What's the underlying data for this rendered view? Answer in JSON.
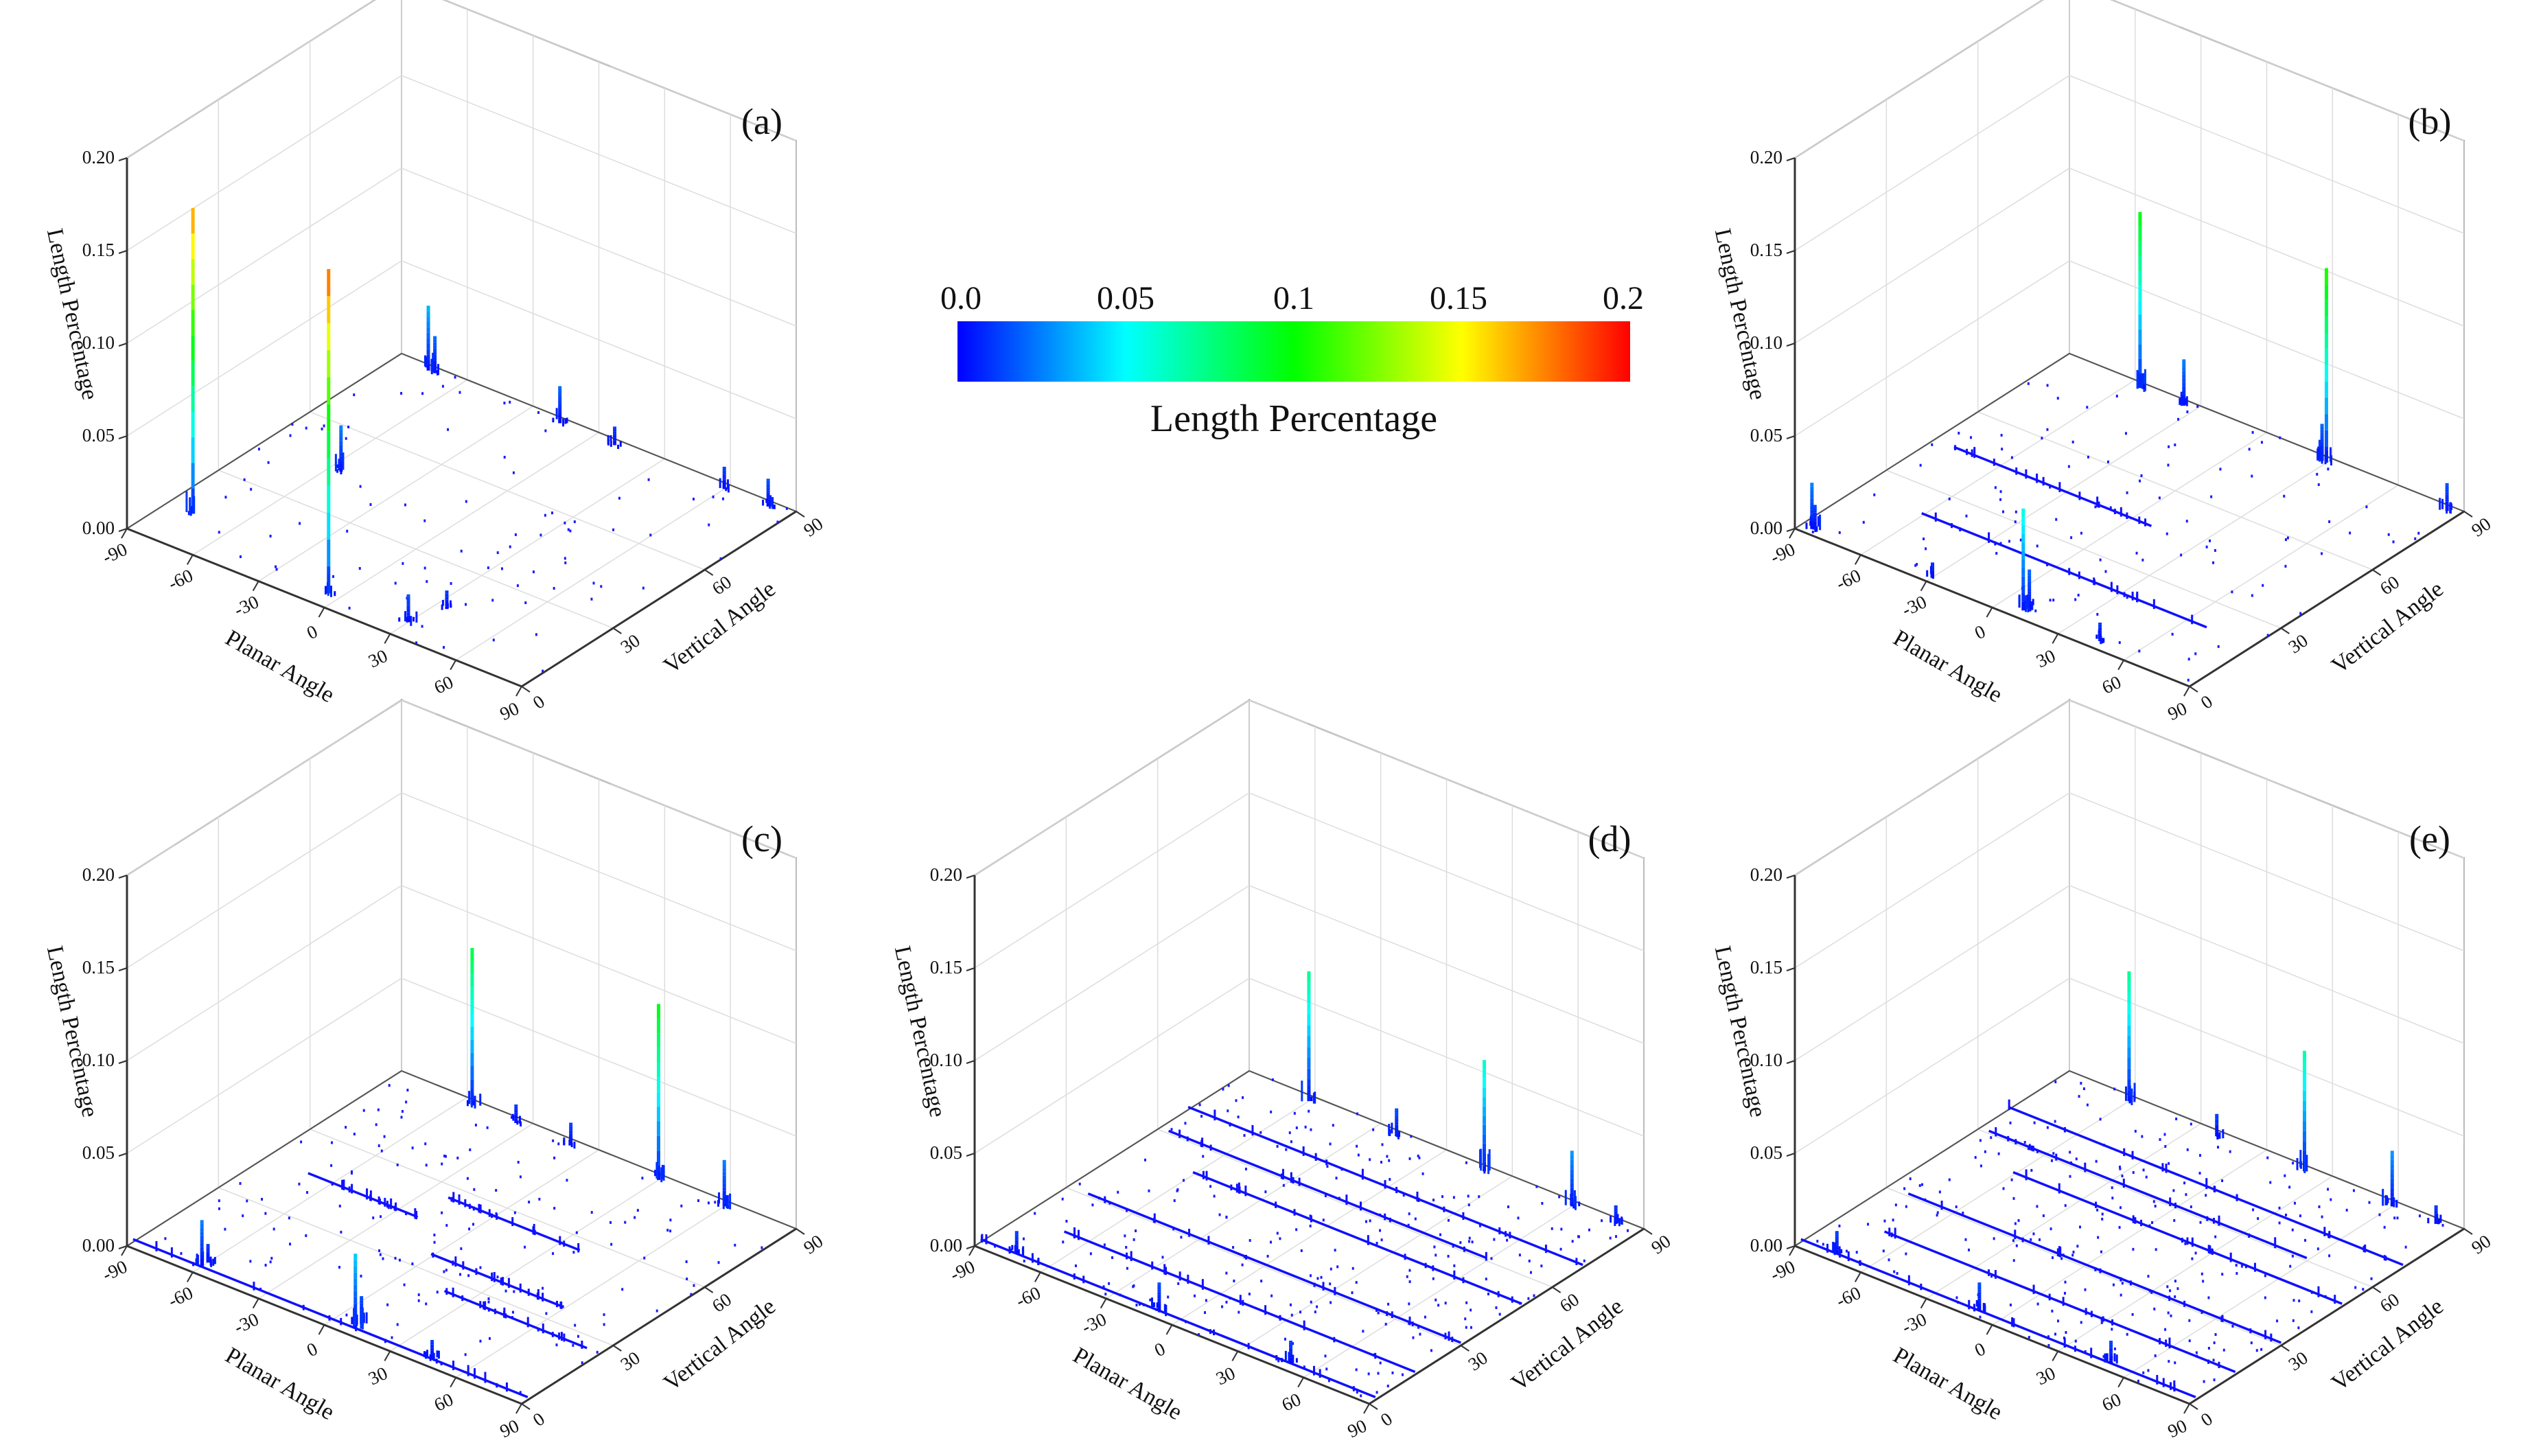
{
  "figure": {
    "domain": "3D bar histograms of fracture orientation vs. length percentage"
  },
  "colorbar": {
    "title": "Length Percentage",
    "ticks": [
      "0.0",
      "0.05",
      "0.1",
      "0.15",
      "0.2"
    ],
    "colors": [
      "#0000ff",
      "#00ffff",
      "#00ff00",
      "#ffff00",
      "#ff0000"
    ],
    "range": [
      0,
      0.2
    ]
  },
  "chart_data": [
    {
      "label": "(a)",
      "type": "bar3d",
      "xlabel": "Planar Angle",
      "ylabel": "Vertical Angle",
      "zlabel": "Length Percentage",
      "x_ticks": [
        "-90",
        "-60",
        "-30",
        "0",
        "30",
        "60",
        "90"
      ],
      "y_ticks": [
        "0",
        "30",
        "60",
        "90"
      ],
      "z_ticks": [
        "0.00",
        "0.05",
        "0.10",
        "0.15",
        "0.20"
      ],
      "xlim": [
        -90,
        90
      ],
      "ylim": [
        0,
        90
      ],
      "zlim": [
        0,
        0.2
      ],
      "peaks": [
        {
          "x": -78,
          "y": 13,
          "z": 0.165
        },
        {
          "x": -5,
          "y": 5,
          "z": 0.175
        },
        {
          "x": -55,
          "y": 45,
          "z": 0.025
        },
        {
          "x": 30,
          "y": 6,
          "z": 0.015
        },
        {
          "x": 35,
          "y": 15,
          "z": 0.01
        },
        {
          "x": -75,
          "y": 88,
          "z": 0.035
        },
        {
          "x": -72,
          "y": 88,
          "z": 0.02
        },
        {
          "x": -15,
          "y": 88,
          "z": 0.02
        },
        {
          "x": 10,
          "y": 88,
          "z": 0.01
        },
        {
          "x": 60,
          "y": 88,
          "z": 0.012
        },
        {
          "x": 80,
          "y": 88,
          "z": 0.015
        }
      ],
      "rows": [],
      "noise": 0.8
    },
    {
      "label": "(b)",
      "type": "bar3d",
      "xlabel": "Planar Angle",
      "ylabel": "Vertical Angle",
      "zlabel": "Length Percentage",
      "x_ticks": [
        "-90",
        "-60",
        "-30",
        "0",
        "30",
        "60",
        "90"
      ],
      "y_ticks": [
        "0",
        "30",
        "60",
        "90"
      ],
      "z_ticks": [
        "0.00",
        "0.05",
        "0.10",
        "0.15",
        "0.20"
      ],
      "xlim": [
        -90,
        90
      ],
      "ylim": [
        0,
        90
      ],
      "zlim": [
        0,
        0.2
      ],
      "peaks": [
        {
          "x": -85,
          "y": 2,
          "z": 0.025
        },
        {
          "x": -85,
          "y": 3,
          "z": 0.012
        },
        {
          "x": -30,
          "y": 2,
          "z": 0.008
        },
        {
          "x": 10,
          "y": 3,
          "z": 0.055
        },
        {
          "x": 10,
          "y": 5,
          "z": 0.02
        },
        {
          "x": 45,
          "y": 3,
          "z": 0.01
        },
        {
          "x": -55,
          "y": 88,
          "z": 0.095
        },
        {
          "x": -35,
          "y": 88,
          "z": 0.025
        },
        {
          "x": 30,
          "y": 88,
          "z": 0.105
        },
        {
          "x": 28,
          "y": 88,
          "z": 0.02
        },
        {
          "x": 85,
          "y": 88,
          "z": 0.015
        }
      ],
      "rows": [
        {
          "y": 20,
          "x0": -60,
          "x1": 70
        },
        {
          "y": 45,
          "x0": -80,
          "x1": 10
        }
      ],
      "noise": 1.0
    },
    {
      "label": "(c)",
      "type": "bar3d",
      "xlabel": "Planar Angle",
      "ylabel": "Vertical Angle",
      "zlabel": "Length Percentage",
      "x_ticks": [
        "-90",
        "-60",
        "-30",
        "0",
        "30",
        "60",
        "90"
      ],
      "y_ticks": [
        "0",
        "30",
        "60",
        "90"
      ],
      "z_ticks": [
        "0.00",
        "0.05",
        "0.10",
        "0.15",
        "0.20"
      ],
      "xlim": [
        -90,
        90
      ],
      "ylim": [
        0,
        90
      ],
      "zlim": [
        0,
        0.2
      ],
      "peaks": [
        {
          "x": -60,
          "y": 3,
          "z": 0.025
        },
        {
          "x": -60,
          "y": 5,
          "z": 0.01
        },
        {
          "x": 10,
          "y": 3,
          "z": 0.04
        },
        {
          "x": 10,
          "y": 5,
          "z": 0.015
        },
        {
          "x": 45,
          "y": 3,
          "z": 0.01
        },
        {
          "x": -55,
          "y": 88,
          "z": 0.085
        },
        {
          "x": 30,
          "y": 88,
          "z": 0.095
        },
        {
          "x": 60,
          "y": 88,
          "z": 0.025
        },
        {
          "x": -10,
          "y": 88,
          "z": 0.012
        },
        {
          "x": -35,
          "y": 88,
          "z": 0.01
        }
      ],
      "rows": [
        {
          "y": 2,
          "x0": -90,
          "x1": 90
        },
        {
          "y": 45,
          "x0": -70,
          "x1": -20
        },
        {
          "y": 35,
          "x0": 0,
          "x1": 60
        },
        {
          "y": 55,
          "x0": -20,
          "x1": 40
        },
        {
          "y": 25,
          "x0": 20,
          "x1": 85
        }
      ],
      "noise": 1.4
    },
    {
      "label": "(d)",
      "type": "bar3d",
      "xlabel": "Planar Angle",
      "ylabel": "Vertical Angle",
      "zlabel": "Length Percentage",
      "x_ticks": [
        "-90",
        "-60",
        "-30",
        "0",
        "30",
        "60",
        "90"
      ],
      "y_ticks": [
        "0",
        "30",
        "60",
        "90"
      ],
      "z_ticks": [
        "0.00",
        "0.05",
        "0.10",
        "0.15",
        "0.20"
      ],
      "xlim": [
        -90,
        90
      ],
      "ylim": [
        0,
        90
      ],
      "zlim": [
        0,
        0.2
      ],
      "peaks": [
        {
          "x": -75,
          "y": 3,
          "z": 0.012
        },
        {
          "x": -10,
          "y": 3,
          "z": 0.015
        },
        {
          "x": 50,
          "y": 3,
          "z": 0.012
        },
        {
          "x": -60,
          "y": 88,
          "z": 0.07
        },
        {
          "x": 20,
          "y": 88,
          "z": 0.06
        },
        {
          "x": 60,
          "y": 88,
          "z": 0.03
        },
        {
          "x": -20,
          "y": 88,
          "z": 0.015
        },
        {
          "x": 80,
          "y": 88,
          "z": 0.01
        }
      ],
      "rows": [
        {
          "y": 2,
          "x0": -90,
          "x1": 90
        },
        {
          "y": 70,
          "x0": -90,
          "x1": 90
        },
        {
          "y": 50,
          "x0": -60,
          "x1": 90
        },
        {
          "y": 30,
          "x0": -80,
          "x1": 90
        },
        {
          "y": 15,
          "x0": -70,
          "x1": 90
        },
        {
          "y": 60,
          "x0": -85,
          "x1": 60
        }
      ],
      "noise": 2.2
    },
    {
      "label": "(e)",
      "type": "bar3d",
      "xlabel": "Planar Angle",
      "ylabel": "Vertical Angle",
      "zlabel": "Length Percentage",
      "x_ticks": [
        "-90",
        "-60",
        "-30",
        "0",
        "30",
        "60",
        "90"
      ],
      "y_ticks": [
        "0",
        "30",
        "60",
        "90"
      ],
      "z_ticks": [
        "0.00",
        "0.05",
        "0.10",
        "0.15",
        "0.20"
      ],
      "xlim": [
        -90,
        90
      ],
      "ylim": [
        0,
        90
      ],
      "zlim": [
        0,
        0.2
      ],
      "peaks": [
        {
          "x": -75,
          "y": 3,
          "z": 0.012
        },
        {
          "x": -10,
          "y": 3,
          "z": 0.015
        },
        {
          "x": 50,
          "y": 3,
          "z": 0.012
        },
        {
          "x": -60,
          "y": 88,
          "z": 0.07
        },
        {
          "x": 20,
          "y": 88,
          "z": 0.065
        },
        {
          "x": 60,
          "y": 88,
          "z": 0.03
        },
        {
          "x": -20,
          "y": 88,
          "z": 0.012
        },
        {
          "x": 80,
          "y": 88,
          "z": 0.01
        }
      ],
      "rows": [
        {
          "y": 2,
          "x0": -90,
          "x1": 90
        },
        {
          "y": 70,
          "x0": -90,
          "x1": 90
        },
        {
          "y": 50,
          "x0": -60,
          "x1": 90
        },
        {
          "y": 30,
          "x0": -80,
          "x1": 90
        },
        {
          "y": 15,
          "x0": -70,
          "x1": 90
        },
        {
          "y": 60,
          "x0": -85,
          "x1": 60
        }
      ],
      "noise": 2.2
    }
  ]
}
